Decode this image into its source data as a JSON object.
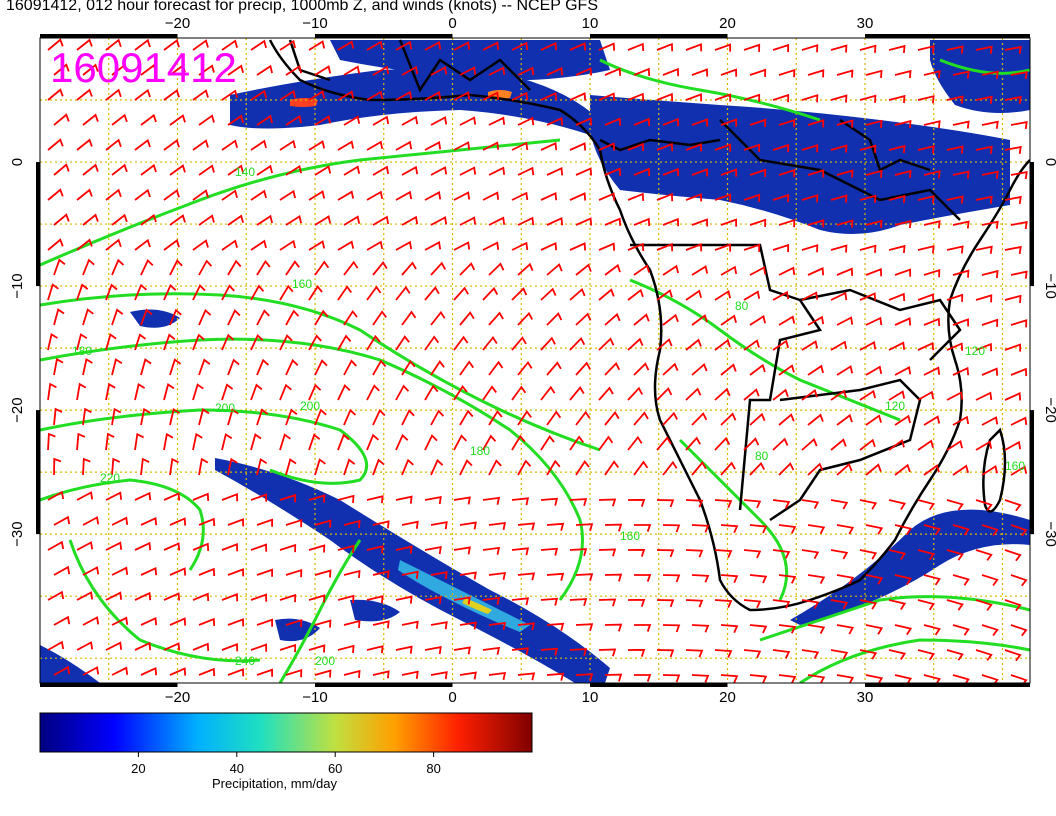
{
  "title": "16091412, 012 hour forecast for precip, 1000mb Z, and winds (knots) -- NCEP GFS",
  "stamp": "16091412",
  "stamp_color": "#ff00ff",
  "colors": {
    "precip_low": "#000080",
    "precip_mid": "#2040c0",
    "contour": "#22dd22",
    "wind_barb": "#ff0000",
    "borders": "#000000",
    "grid": "#d8b800"
  },
  "map": {
    "lon_range": [
      -30,
      42
    ],
    "lat_range": [
      -42,
      10
    ],
    "lon_ticks": [
      -20,
      -10,
      0,
      10,
      20,
      30
    ],
    "lat_ticks": [
      0,
      -10,
      -20,
      -30
    ],
    "lon_labels": [
      "−20",
      "−10",
      "0",
      "10",
      "20",
      "30"
    ],
    "lat_labels": [
      "0",
      "−10",
      "−20",
      "−30"
    ],
    "contour_labels": [
      "140",
      "160",
      "180",
      "200",
      "200",
      "180",
      "160",
      "220",
      "240",
      "200",
      "80",
      "80",
      "120",
      "160",
      "120"
    ],
    "grid": true
  },
  "colorbar": {
    "label": "Precipitation, mm/day",
    "range": [
      0,
      100
    ],
    "ticks": [
      "20",
      "40",
      "60",
      "80"
    ],
    "tick_values": [
      20,
      40,
      60,
      80
    ]
  }
}
